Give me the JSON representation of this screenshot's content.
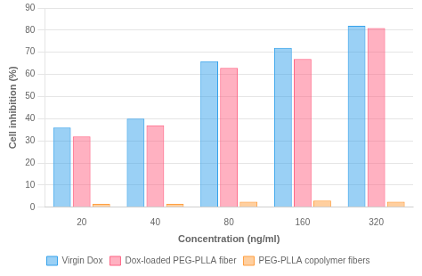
{
  "chart_data": {
    "type": "bar",
    "xlabel": "Concentration (ng/ml)",
    "ylabel": "Cell inhibition (%)",
    "categories": [
      "20",
      "40",
      "80",
      "160",
      "320"
    ],
    "series": [
      {
        "name": "Virgin Dox",
        "values": [
          36,
          40,
          66,
          72,
          82
        ]
      },
      {
        "name": "Dox-loaded PEG-PLLA fiber",
        "values": [
          32,
          37,
          63,
          67,
          81
        ]
      },
      {
        "name": "PEG-PLLA copolymer fibers",
        "values": [
          1.5,
          1.5,
          2.5,
          3.0,
          2.5
        ]
      }
    ],
    "ylim": [
      0,
      90
    ],
    "yticks": [
      0,
      10,
      20,
      30,
      40,
      50,
      60,
      70,
      80,
      90
    ],
    "grid": true,
    "legend": "bottom"
  }
}
